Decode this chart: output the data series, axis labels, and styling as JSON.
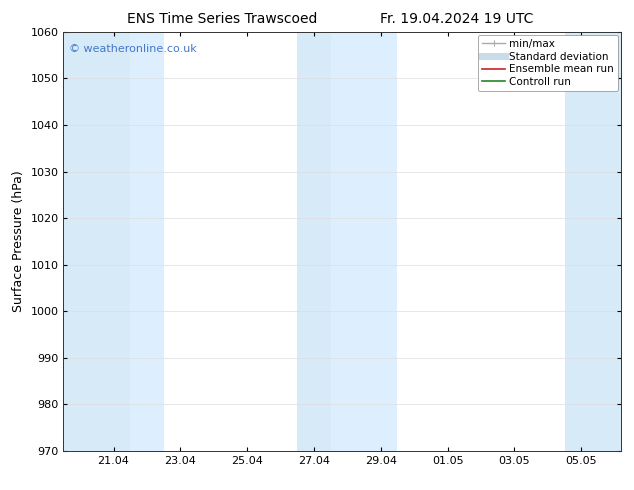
{
  "title_left": "ENS Time Series Trawscoed",
  "title_right": "Fr. 19.04.2024 19 UTC",
  "ylabel": "Surface Pressure (hPa)",
  "ylim": [
    970,
    1060
  ],
  "yticks": [
    970,
    980,
    990,
    1000,
    1010,
    1020,
    1030,
    1040,
    1050,
    1060
  ],
  "xlim_start": 19.5,
  "xlim_end": 36.2,
  "xtick_labels": [
    "21.04",
    "23.04",
    "25.04",
    "27.04",
    "29.04",
    "01.05",
    "03.05",
    "05.05"
  ],
  "xtick_positions": [
    21.0,
    23.0,
    25.0,
    27.0,
    29.0,
    31.0,
    33.0,
    35.0
  ],
  "shaded_bands": [
    {
      "xmin": 19.5,
      "xmax": 21.5,
      "color": "#d6eaf8"
    },
    {
      "xmin": 21.5,
      "xmax": 22.5,
      "color": "#ddeeff"
    },
    {
      "xmin": 26.5,
      "xmax": 27.5,
      "color": "#d6eaf8"
    },
    {
      "xmin": 27.5,
      "xmax": 29.5,
      "color": "#ddeeff"
    },
    {
      "xmin": 34.5,
      "xmax": 36.2,
      "color": "#d6eaf8"
    }
  ],
  "watermark": "© weatheronline.co.uk",
  "watermark_color": "#4477cc",
  "bg_color": "#ffffff",
  "plot_bg_color": "#ffffff",
  "legend_items": [
    {
      "label": "min/max",
      "color": "#aaaaaa",
      "lw": 1.0
    },
    {
      "label": "Standard deviation",
      "color": "#c8dcea",
      "lw": 5
    },
    {
      "label": "Ensemble mean run",
      "color": "#cc2222",
      "lw": 1.2
    },
    {
      "label": "Controll run",
      "color": "#228822",
      "lw": 1.2
    }
  ],
  "title_fontsize": 10,
  "tick_fontsize": 8,
  "ylabel_fontsize": 9,
  "watermark_fontsize": 8,
  "legend_fontsize": 7.5
}
